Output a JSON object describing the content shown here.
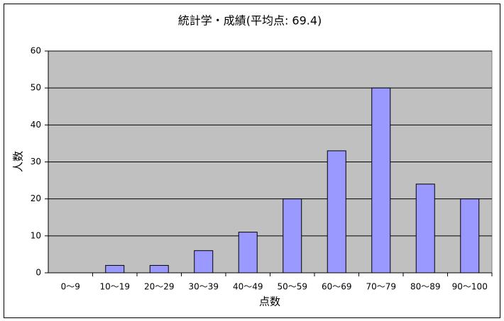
{
  "chart_data": {
    "type": "bar",
    "title": "統計学・成績(平均点: 69.4)",
    "x_label": "点数",
    "y_label": "人数",
    "categories": [
      "0〜9",
      "10〜19",
      "20〜29",
      "30〜39",
      "40〜49",
      "50〜59",
      "60〜69",
      "70〜79",
      "80〜89",
      "90〜100"
    ],
    "values": [
      0,
      2,
      2,
      6,
      11,
      20,
      33,
      50,
      24,
      20
    ],
    "color": "#9999ff",
    "ylim": [
      0,
      60
    ],
    "yticks": [
      0,
      10,
      20,
      30,
      40,
      50,
      60
    ],
    "grid": true
  }
}
